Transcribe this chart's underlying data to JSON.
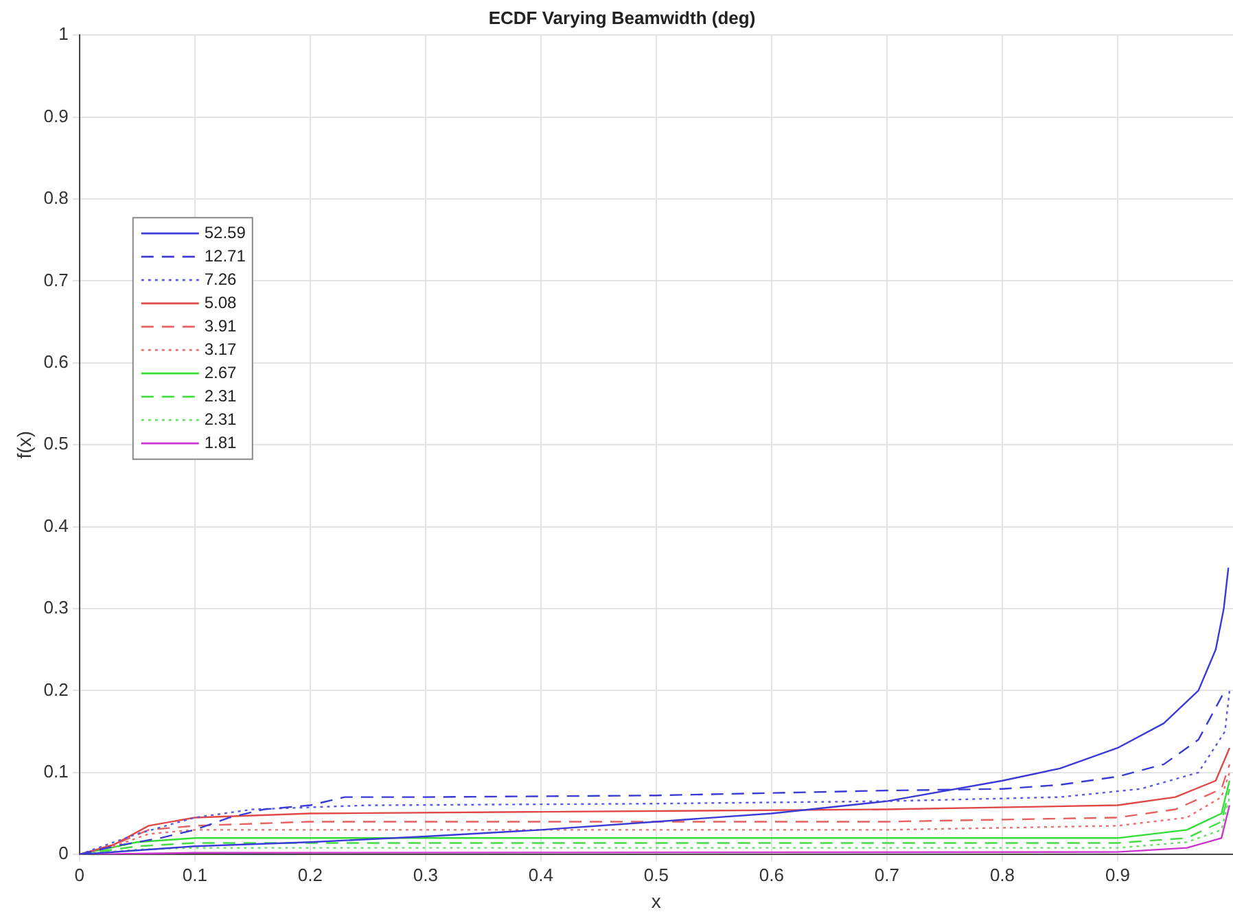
{
  "chart_data": {
    "type": "line",
    "title": "ECDF Varying Beamwidth (deg)",
    "xlabel": "x",
    "ylabel": "f(x)",
    "xlim": [
      0,
      1
    ],
    "xticks": [
      0,
      0.1,
      0.2,
      0.3,
      0.4,
      0.5,
      0.6,
      0.7,
      0.8,
      0.9
    ],
    "ylim": [
      0,
      1
    ],
    "yticks": [
      0,
      0.1,
      0.2,
      0.3,
      0.4,
      0.5,
      0.6,
      0.7,
      0.8,
      0.9,
      1
    ],
    "grid": true,
    "legend": "left",
    "marker": "none",
    "series": [
      {
        "name": "52.59",
        "color": "#3a3ad6",
        "line_style": "solid",
        "x": [
          0,
          0.05,
          0.1,
          0.2,
          0.3,
          0.4,
          0.5,
          0.6,
          0.7,
          0.8,
          0.85,
          0.9,
          0.94,
          0.97,
          0.985,
          0.992,
          0.996
        ],
        "values": [
          0,
          0.005,
          0.01,
          0.015,
          0.022,
          0.03,
          0.04,
          0.05,
          0.065,
          0.09,
          0.105,
          0.13,
          0.16,
          0.2,
          0.25,
          0.3,
          0.35
        ]
      },
      {
        "name": "12.71",
        "color": "#3a3ad6",
        "line_style": "dashed",
        "x": [
          0,
          0.03,
          0.07,
          0.1,
          0.13,
          0.16,
          0.2,
          0.23,
          0.3,
          0.5,
          0.6,
          0.7,
          0.8,
          0.85,
          0.9,
          0.94,
          0.97,
          0.993
        ],
        "values": [
          0,
          0.01,
          0.02,
          0.03,
          0.045,
          0.055,
          0.06,
          0.07,
          0.07,
          0.072,
          0.075,
          0.078,
          0.08,
          0.085,
          0.095,
          0.11,
          0.14,
          0.2
        ]
      },
      {
        "name": "7.26",
        "color": "#5a5ae0",
        "line_style": "dotted",
        "x": [
          0,
          0.05,
          0.1,
          0.15,
          0.25,
          0.5,
          0.7,
          0.85,
          0.92,
          0.97,
          0.993,
          0.997
        ],
        "values": [
          0,
          0.025,
          0.045,
          0.055,
          0.06,
          0.062,
          0.065,
          0.07,
          0.08,
          0.1,
          0.15,
          0.2
        ]
      },
      {
        "name": "5.08",
        "color": "#e04848",
        "line_style": "solid",
        "x": [
          0,
          0.03,
          0.06,
          0.1,
          0.2,
          0.4,
          0.7,
          0.9,
          0.95,
          0.985,
          0.997
        ],
        "values": [
          0,
          0.012,
          0.035,
          0.045,
          0.05,
          0.052,
          0.055,
          0.06,
          0.07,
          0.09,
          0.13
        ]
      },
      {
        "name": "3.91",
        "color": "#e86060",
        "line_style": "dashed",
        "x": [
          0,
          0.03,
          0.06,
          0.1,
          0.2,
          0.7,
          0.9,
          0.95,
          0.99,
          0.997
        ],
        "values": [
          0,
          0.012,
          0.03,
          0.035,
          0.04,
          0.04,
          0.045,
          0.055,
          0.08,
          0.11
        ]
      },
      {
        "name": "3.17",
        "color": "#e87070",
        "line_style": "dotted",
        "x": [
          0,
          0.03,
          0.06,
          0.1,
          0.7,
          0.9,
          0.96,
          0.99,
          0.997
        ],
        "values": [
          0,
          0.01,
          0.025,
          0.03,
          0.03,
          0.035,
          0.045,
          0.07,
          0.1
        ]
      },
      {
        "name": "2.67",
        "color": "#33dd33",
        "line_style": "solid",
        "x": [
          0,
          0.05,
          0.1,
          0.9,
          0.96,
          0.99,
          0.997
        ],
        "values": [
          0,
          0.015,
          0.02,
          0.02,
          0.03,
          0.05,
          0.09
        ]
      },
      {
        "name": "2.31",
        "color": "#44dd44",
        "line_style": "dashed",
        "x": [
          0,
          0.05,
          0.1,
          0.9,
          0.96,
          0.99,
          0.997
        ],
        "values": [
          0,
          0.01,
          0.014,
          0.014,
          0.02,
          0.04,
          0.08
        ]
      },
      {
        "name": "2.31",
        "color": "#66e066",
        "line_style": "dotted",
        "x": [
          0,
          0.05,
          0.1,
          0.9,
          0.96,
          0.99,
          0.997
        ],
        "values": [
          0,
          0.006,
          0.008,
          0.008,
          0.015,
          0.03,
          0.07
        ]
      },
      {
        "name": "1.81",
        "color": "#cc33cc",
        "line_style": "solid",
        "x": [
          0,
          0.1,
          0.9,
          0.96,
          0.99,
          0.997
        ],
        "values": [
          0,
          0.002,
          0.003,
          0.008,
          0.02,
          0.06
        ]
      }
    ]
  }
}
